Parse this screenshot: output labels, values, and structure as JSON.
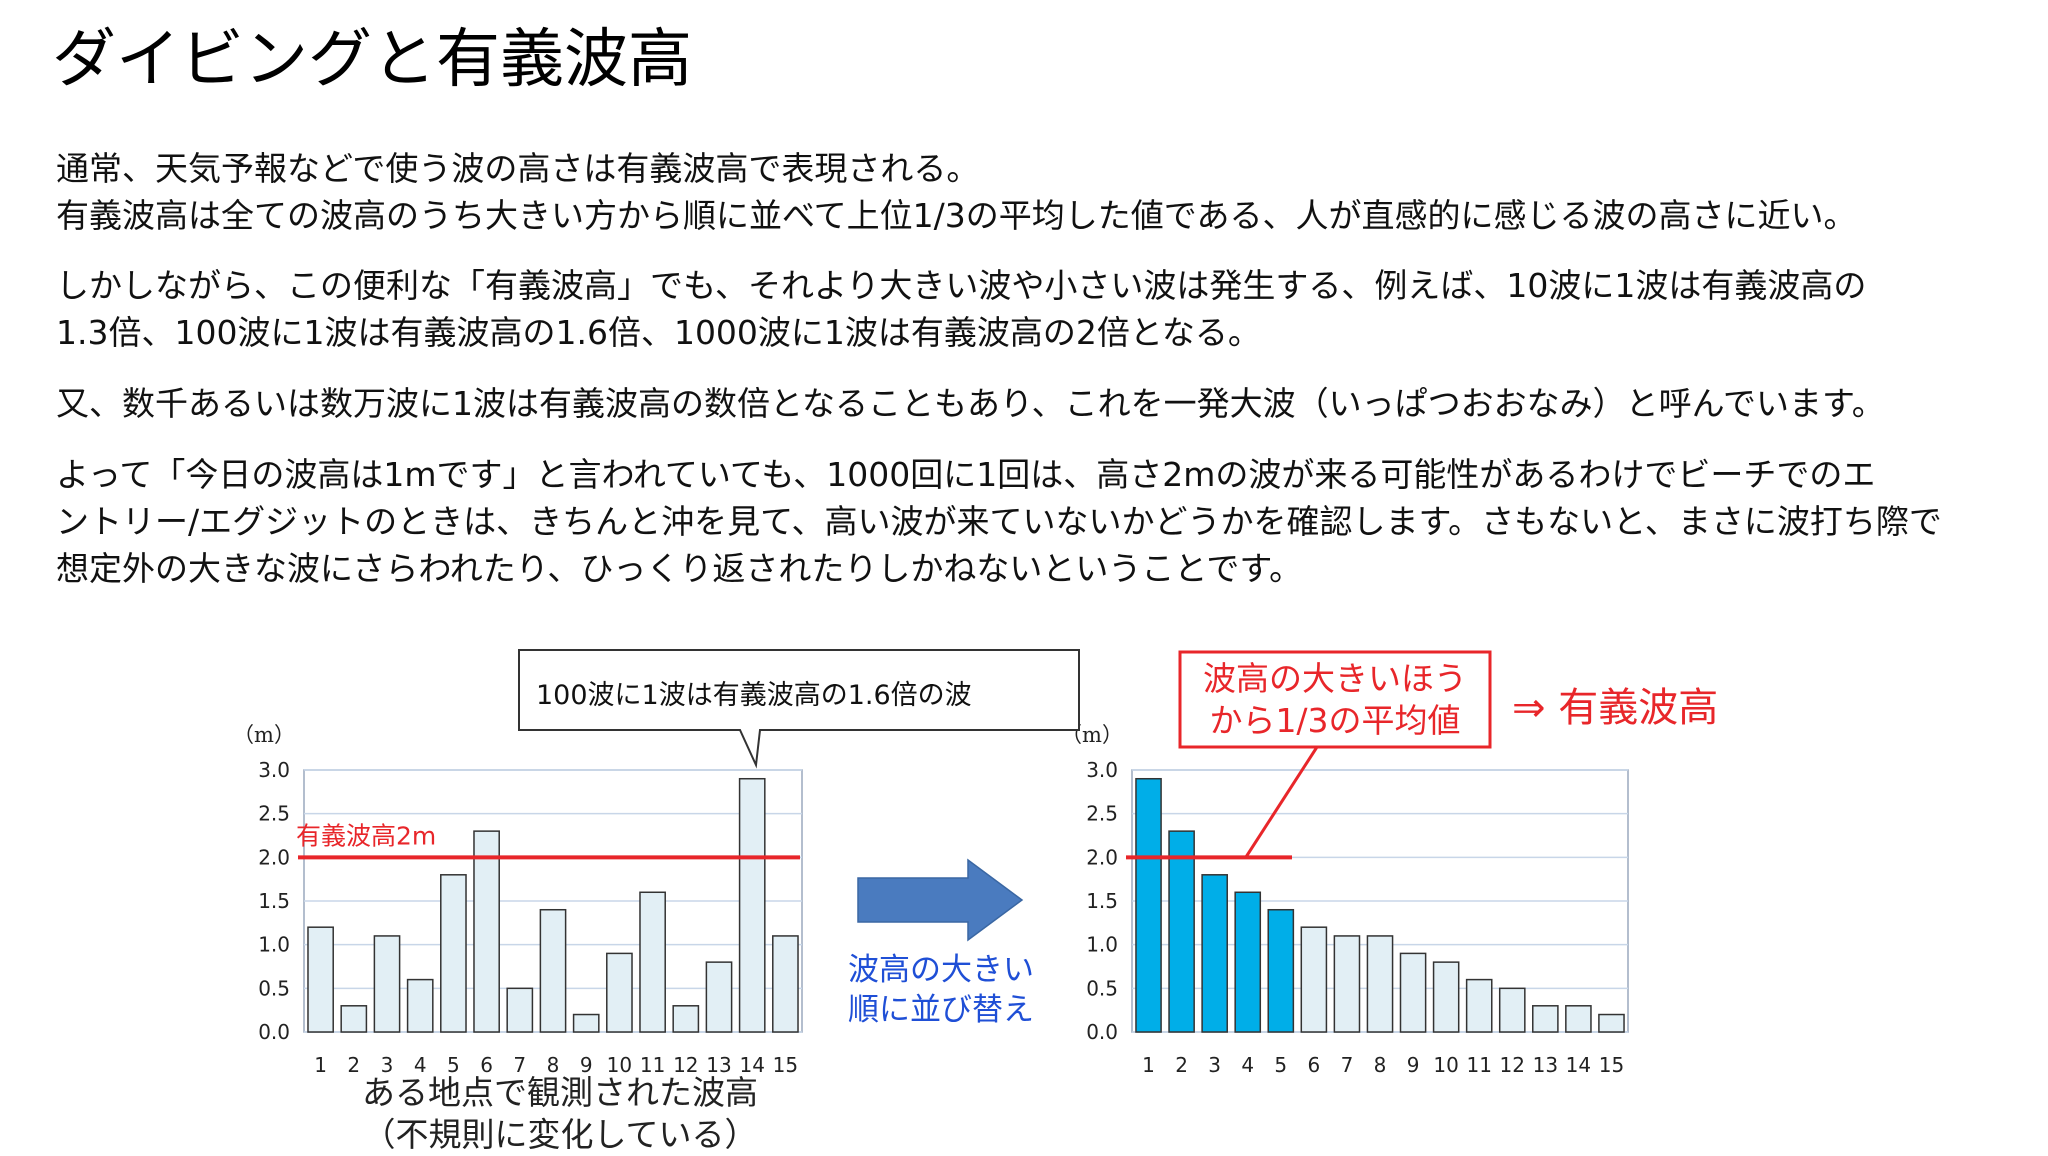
{
  "title": "ダイビングと有義波高",
  "paragraphs": {
    "p1": [
      "通常、天気予報などで使う波の高さは有義波高で表現される。",
      "有義波高は全ての波高のうち大きい方から順に並べて上位1/3の平均した値である、人が直感的に感じる波の高さに近い。"
    ],
    "p2": [
      "しかしながら、この便利な「有義波高」でも、それより大きい波や小さい波は発生する、例えば、10波に1波は有義波高の",
      "1.3倍、100波に1波は有義波高の1.6倍、1000波に1波は有義波高の2倍となる。"
    ],
    "p3": [
      "又、数千あるいは数万波に1波は有義波高の数倍となることもあり、これを一発大波（いっぱつおおなみ）と呼んでいます。"
    ],
    "p4": [
      "よって「今日の波高は1mです」と言われていても、1000回に1回は、高さ2mの波が来る可能性があるわけでビーチでのエ",
      "ントリー/エグジットのときは、きちんと沖を見て、高い波が来ていないかどうかを確認します。さもないと、まさに波打ち際で",
      "想定外の大きな波にさらわれたり、ひっくり返されたりしかねないということです。"
    ]
  },
  "figure": {
    "callout": "100波に1波は有義波高の1.6倍の波",
    "red_box": [
      "波高の大きいほう",
      "から1/3の平均値"
    ],
    "result": "⇒ 有義波高",
    "sort_label": [
      "波高の大きい",
      "順に並び替え"
    ],
    "caption": [
      "ある地点で観測された波高",
      "（不規則に変化している）"
    ]
  },
  "chart_data": [
    {
      "type": "bar",
      "ylabel": "（m）",
      "ylim": [
        0,
        3.0
      ],
      "yticks": [
        "0.0",
        "0.5",
        "1.0",
        "1.5",
        "2.0",
        "2.5",
        "3.0"
      ],
      "categories": [
        "1",
        "2",
        "3",
        "4",
        "5",
        "6",
        "7",
        "8",
        "9",
        "10",
        "11",
        "12",
        "13",
        "14",
        "15"
      ],
      "values": [
        1.2,
        0.3,
        1.1,
        0.6,
        1.8,
        2.3,
        0.5,
        1.4,
        0.2,
        0.9,
        1.6,
        0.3,
        0.8,
        2.9,
        1.1
      ],
      "grid": true,
      "reference_line": {
        "value": 2.0,
        "label": "有義波高2m"
      },
      "colors": {
        "bar": "#e2eff5",
        "bar_edge": "#333333",
        "reference": "#e8262a",
        "grid": "#c8d6e8"
      }
    },
    {
      "type": "bar",
      "ylabel": "（m）",
      "ylim": [
        0,
        3.0
      ],
      "yticks": [
        "0.0",
        "0.5",
        "1.0",
        "1.5",
        "2.0",
        "2.5",
        "3.0"
      ],
      "categories": [
        "1",
        "2",
        "3",
        "4",
        "5",
        "6",
        "7",
        "8",
        "9",
        "10",
        "11",
        "12",
        "13",
        "14",
        "15"
      ],
      "values": [
        2.9,
        2.3,
        1.8,
        1.6,
        1.4,
        1.2,
        1.1,
        1.1,
        0.9,
        0.8,
        0.6,
        0.5,
        0.3,
        0.3,
        0.2
      ],
      "highlight_top": 5,
      "grid": true,
      "reference_line": {
        "value": 2.0
      },
      "colors": {
        "bar": "#e2eff5",
        "bar_highlight": "#00aee8",
        "bar_edge": "#333333",
        "reference": "#e8262a",
        "grid": "#c8d6e8"
      }
    }
  ],
  "colors": {
    "accent_red": "#e8262a",
    "arrow_blue": "#4a7bbf",
    "sort_text_blue": "#1f4fd6"
  }
}
